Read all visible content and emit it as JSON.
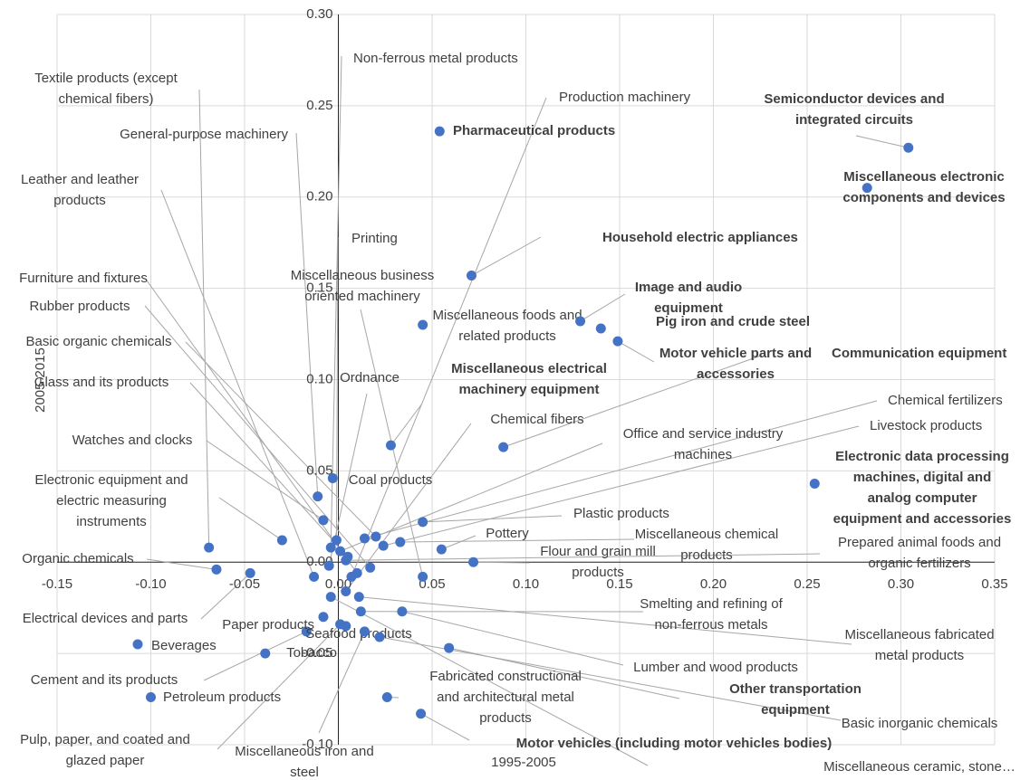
{
  "chart_data": {
    "type": "scatter",
    "xlabel": "1995-2005",
    "ylabel": "2005-2015",
    "xlim": [
      -0.15,
      0.35
    ],
    "ylim": [
      -0.1,
      0.3
    ],
    "xticks": [
      {
        "value": -0.15,
        "label": "-0.15"
      },
      {
        "value": -0.1,
        "label": "-0.10"
      },
      {
        "value": -0.05,
        "label": "-0.05"
      },
      {
        "value": 0,
        "label": "0.00"
      },
      {
        "value": 0.05,
        "label": "0.05"
      },
      {
        "value": 0.1,
        "label": "0.10"
      },
      {
        "value": 0.15,
        "label": "0.15"
      },
      {
        "value": 0.2,
        "label": "0.20"
      },
      {
        "value": 0.25,
        "label": "0.25"
      },
      {
        "value": 0.3,
        "label": "0.30"
      },
      {
        "value": 0.35,
        "label": "0.35"
      }
    ],
    "yticks": [
      {
        "value": -0.1,
        "label": "-0.10"
      },
      {
        "value": -0.05,
        "label": "-0.05"
      },
      {
        "value": 0,
        "label": "0.00"
      },
      {
        "value": 0.05,
        "label": "0.05"
      },
      {
        "value": 0.1,
        "label": "0.10"
      },
      {
        "value": 0.15,
        "label": "0.15"
      },
      {
        "value": 0.2,
        "label": "0.20"
      },
      {
        "value": 0.25,
        "label": "0.25"
      },
      {
        "value": 0.3,
        "label": "0.30"
      }
    ],
    "grid": true,
    "color": "#4472c4",
    "points": [
      {
        "label": "Textile products (except chemical fibers)",
        "x": -0.069,
        "y": 0.008,
        "bold": false
      },
      {
        "label": "Non-ferrous metal products",
        "x": -0.004,
        "y": 0.008,
        "bold": false
      },
      {
        "label": "General-purpose machinery",
        "x": -0.011,
        "y": 0.036,
        "bold": false
      },
      {
        "label": "Leather and leather products",
        "x": -0.013,
        "y": -0.008,
        "bold": false
      },
      {
        "label": "Furniture and fixtures",
        "x": 0.01,
        "y": -0.006,
        "bold": false
      },
      {
        "label": "Rubber products",
        "x": 0.017,
        "y": -0.003,
        "bold": false
      },
      {
        "label": "Basic organic chemicals",
        "x": 0.02,
        "y": 0.014,
        "bold": false
      },
      {
        "label": "Glass and its products",
        "x": 0.005,
        "y": 0.003,
        "bold": false
      },
      {
        "label": "Watches and clocks",
        "x": -0.008,
        "y": 0.023,
        "bold": false
      },
      {
        "label": "Electronic equipment and electric measuring instruments",
        "x": -0.03,
        "y": 0.012,
        "bold": false
      },
      {
        "label": "Organic chemicals",
        "x": -0.065,
        "y": -0.004,
        "bold": false
      },
      {
        "label": "Electrical devices and parts",
        "x": -0.047,
        "y": -0.006,
        "bold": false
      },
      {
        "label": "Beverages",
        "x": -0.107,
        "y": -0.045,
        "bold": false
      },
      {
        "label": "Cement and its products",
        "x": -0.017,
        "y": -0.038,
        "bold": false
      },
      {
        "label": "Petroleum products",
        "x": -0.1,
        "y": -0.074,
        "bold": false
      },
      {
        "label": "Pulp, paper, and coated and glazed paper",
        "x": 0.001,
        "y": -0.034,
        "bold": false
      },
      {
        "label": "Paper products",
        "x": -0.008,
        "y": -0.03,
        "bold": false
      },
      {
        "label": "Seafood products",
        "x": 0.004,
        "y": -0.035,
        "bold": false
      },
      {
        "label": "Tobacco",
        "x": -0.039,
        "y": -0.05,
        "bold": false
      },
      {
        "label": "Miscellaneous iron and steel",
        "x": 0.014,
        "y": -0.038,
        "bold": false
      },
      {
        "label": "Printing",
        "x": -0.001,
        "y": 0.012,
        "bold": false
      },
      {
        "label": "Miscellaneous business oriented machinery",
        "x": 0.045,
        "y": -0.008,
        "bold": false
      },
      {
        "label": "Ordnance",
        "x": -0.005,
        "y": -0.002,
        "bold": false
      },
      {
        "label": "Coal products",
        "x": -0.003,
        "y": 0.046,
        "bold": false
      },
      {
        "label": "Miscellaneous electrical machinery equipment",
        "x": 0.028,
        "y": 0.064,
        "bold": true
      },
      {
        "label": "Pharmaceutical products",
        "x": 0.054,
        "y": 0.236,
        "bold": true
      },
      {
        "label": "Production machinery",
        "x": 0.007,
        "y": -0.008,
        "bold": false
      },
      {
        "label": "Household electric appliances",
        "x": 0.071,
        "y": 0.157,
        "bold": true
      },
      {
        "label": "Miscellaneous foods and related products",
        "x": 0.045,
        "y": 0.13,
        "bold": false
      },
      {
        "label": "Image and audio equipment",
        "x": 0.129,
        "y": 0.132,
        "bold": true
      },
      {
        "label": "Pig iron and crude steel",
        "x": 0.14,
        "y": 0.128,
        "bold": true
      },
      {
        "label": "Motor vehicle parts and accessories",
        "x": 0.149,
        "y": 0.121,
        "bold": true
      },
      {
        "label": "Communication equipment",
        "x": 0.088,
        "y": 0.063,
        "bold": true
      },
      {
        "label": "Chemical fibers",
        "x": 0.004,
        "y": -0.016,
        "bold": false
      },
      {
        "label": "Office and service industry machines",
        "x": 0.001,
        "y": 0.006,
        "bold": false
      },
      {
        "label": "Chemical fertilizers",
        "x": 0.014,
        "y": 0.013,
        "bold": false
      },
      {
        "label": "Livestock products",
        "x": 0.024,
        "y": 0.009,
        "bold": false
      },
      {
        "label": "Electronic data processing machines, digital and analog computer equipment and accessories",
        "x": 0.254,
        "y": 0.043,
        "bold": true
      },
      {
        "label": "Plastic products",
        "x": 0.045,
        "y": 0.022,
        "bold": false
      },
      {
        "label": "Pottery",
        "x": 0.055,
        "y": 0.007,
        "bold": false
      },
      {
        "label": "Miscellaneous chemical products",
        "x": 0.033,
        "y": 0.011,
        "bold": false
      },
      {
        "label": "Flour and grain mill products",
        "x": 0.072,
        "y": 0.0,
        "bold": false
      },
      {
        "label": "Prepared animal foods and organic fertilizers",
        "x": 0.004,
        "y": 0.001,
        "bold": false
      },
      {
        "label": "Smelting and refining of non-ferrous metals",
        "x": 0.012,
        "y": -0.027,
        "bold": false
      },
      {
        "label": "Miscellaneous fabricated metal products",
        "x": 0.011,
        "y": -0.019,
        "bold": false
      },
      {
        "label": "Lumber and wood products",
        "x": 0.034,
        "y": -0.027,
        "bold": false
      },
      {
        "label": "Other transportation equipment",
        "x": 0.059,
        "y": -0.047,
        "bold": true
      },
      {
        "label": "Basic inorganic chemicals",
        "x": 0.022,
        "y": -0.041,
        "bold": false
      },
      {
        "label": "Fabricated constructional and architectural metal products",
        "x": 0.026,
        "y": -0.074,
        "bold": false
      },
      {
        "label": "Motor vehicles (including motor vehicles bodies)",
        "x": 0.044,
        "y": -0.083,
        "bold": true
      },
      {
        "label": "Miscellaneous ceramic, stone…",
        "x": -0.004,
        "y": -0.019,
        "bold": false
      },
      {
        "label": "Semiconductor devices and integrated circuits",
        "x": 0.304,
        "y": 0.227,
        "bold": true
      },
      {
        "label": "Miscellaneous electronic components and devices",
        "x": 0.282,
        "y": 0.205,
        "bold": true
      }
    ]
  }
}
